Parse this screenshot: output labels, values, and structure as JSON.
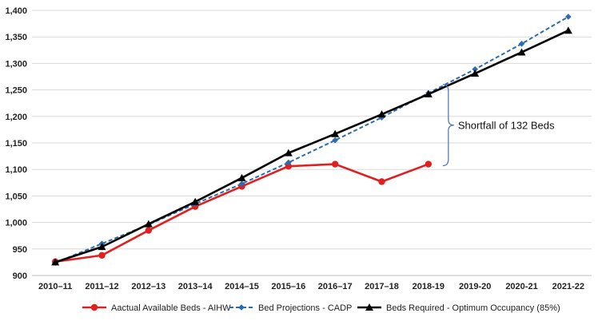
{
  "chart_data": {
    "type": "line",
    "title": "",
    "xlabel": "",
    "ylabel": "",
    "categories": [
      "2010–11",
      "2011–12",
      "2012–13",
      "2013–14",
      "2014–15",
      "2015–16",
      "2016–17",
      "2017–18",
      "2018-19",
      "2019-20",
      "2020-21",
      "2021-22"
    ],
    "ylim": [
      900,
      1400
    ],
    "yticks": [
      900,
      950,
      "1,000",
      "1,050",
      "1,100",
      "1,150",
      "1,200",
      "1,250",
      "1,300",
      "1,350",
      "1,400"
    ],
    "grid": true,
    "legend_position": "bottom",
    "series": [
      {
        "name": "Aactual Available Beds - AIHW",
        "values": [
          926,
          938,
          985,
          1030,
          1068,
          1106,
          1110,
          1077,
          1110,
          null,
          null,
          null
        ],
        "color": "#e02020",
        "line_style": "solid",
        "marker": "circle"
      },
      {
        "name": "Bed Projections - CADP",
        "values": [
          924,
          960,
          996,
          1035,
          1073,
          1113,
          1155,
          1198,
          1244,
          1289,
          1337,
          1388
        ],
        "color": "#2b6cb0",
        "line_style": "dashed",
        "marker": "diamond"
      },
      {
        "name": "Beds Required - Optimum Occupancy (85%)",
        "values": [
          925,
          954,
          997,
          1039,
          1084,
          1131,
          1167,
          1204,
          1242,
          1281,
          1321,
          1362
        ],
        "color": "#000000",
        "line_style": "solid",
        "marker": "triangle"
      }
    ],
    "annotation": {
      "text": "Shortfall of 132 Beds",
      "from_value": 1110,
      "to_value": 1242,
      "category": "2018-19"
    }
  }
}
